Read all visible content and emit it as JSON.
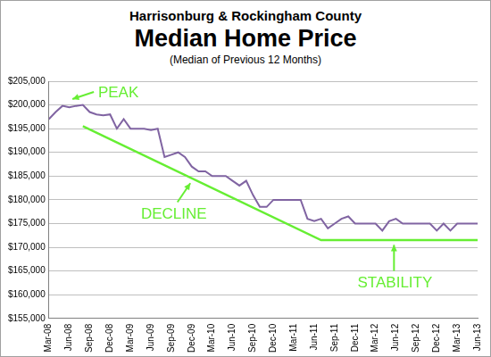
{
  "chart_data": {
    "type": "line",
    "header": "Harrisonburg & Rockingham County",
    "title": "Median Home Price",
    "subtitle": "(Median of Previous 12 Months)",
    "annotations": [
      "PEAK",
      "DECLINE",
      "STABILITY"
    ],
    "categories": [
      "Mar-08",
      null,
      null,
      "Jun-08",
      null,
      null,
      "Sep-08",
      null,
      null,
      "Dec-08",
      null,
      null,
      "Mar-09",
      null,
      null,
      "Jun-09",
      null,
      null,
      "Sep-09",
      null,
      null,
      "Dec-09",
      null,
      null,
      "Mar-10",
      null,
      null,
      "Jun-10",
      null,
      null,
      "Sep-10",
      null,
      null,
      "Dec-10",
      null,
      null,
      "Mar-11",
      null,
      null,
      "Jun-11",
      null,
      null,
      "Sep-11",
      null,
      null,
      "Dec-11",
      null,
      null,
      "Mar-12",
      null,
      null,
      "Jun-12",
      null,
      null,
      "Sep-12",
      null,
      null,
      "Dec-12",
      null,
      null,
      "Mar-13",
      null,
      null,
      "Jun-13"
    ],
    "series": [
      {
        "color": "#8064a2",
        "values": [
          197000,
          198500,
          199800,
          199500,
          199800,
          200000,
          198500,
          198000,
          197800,
          198000,
          195000,
          197000,
          195000,
          195000,
          195000,
          194700,
          195000,
          189000,
          189500,
          190000,
          189000,
          187000,
          186000,
          186000,
          185000,
          185000,
          185000,
          184000,
          183000,
          184000,
          181000,
          178500,
          178500,
          180000,
          180000,
          180000,
          180000,
          180000,
          176000,
          175500,
          176000,
          174000,
          175000,
          176000,
          176500,
          175000,
          175000,
          175000,
          175000,
          173500,
          175500,
          176000,
          175000,
          175000,
          175000,
          175000,
          175000,
          173500,
          175000,
          173500,
          175000,
          175000,
          175000,
          175000
        ]
      },
      {
        "color": "#66ee33",
        "values": [
          null,
          null,
          null,
          null,
          null,
          195500,
          null,
          null,
          null,
          null,
          null,
          null,
          null,
          null,
          null,
          null,
          null,
          null,
          null,
          null,
          null,
          null,
          null,
          null,
          null,
          null,
          null,
          null,
          null,
          null,
          null,
          null,
          null,
          null,
          null,
          null,
          null,
          null,
          null,
          null,
          171500,
          null,
          null,
          null,
          null,
          null,
          null,
          null,
          null,
          null,
          null,
          null,
          null,
          null,
          null,
          null,
          null,
          null,
          null,
          null,
          null,
          null,
          null,
          171500
        ]
      }
    ],
    "ylim": [
      155000,
      205000
    ],
    "yticks": [
      {
        "value": 155000,
        "label": "$155,000"
      },
      {
        "value": 160000,
        "label": "$160,000"
      },
      {
        "value": 165000,
        "label": "$165,000"
      },
      {
        "value": 170000,
        "label": "$170,000"
      },
      {
        "value": 175000,
        "label": "$175,000"
      },
      {
        "value": 180000,
        "label": "$180,000"
      },
      {
        "value": 185000,
        "label": "$185,000"
      },
      {
        "value": 190000,
        "label": "$190,000"
      },
      {
        "value": 195000,
        "label": "$195,000"
      },
      {
        "value": 200000,
        "label": "$200,000"
      },
      {
        "value": 205000,
        "label": "$205,000"
      }
    ],
    "grid": true
  }
}
